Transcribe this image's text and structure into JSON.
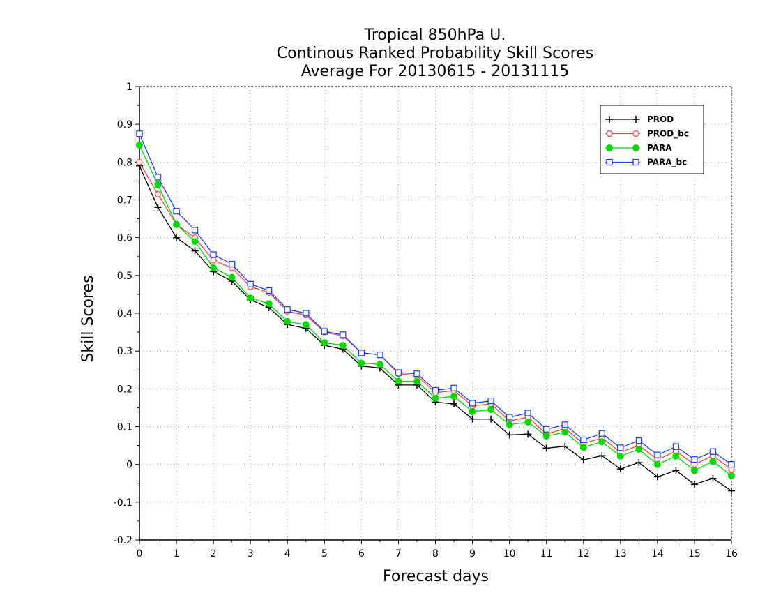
{
  "chart_data": {
    "type": "line",
    "title": [
      "Tropical 850hPa U.",
      "Continous Ranked Probability Skill Scores",
      "Average For 20130615 - 20131115"
    ],
    "xlabel": "Forecast days",
    "ylabel": "Skill Scores",
    "xlim": [
      0,
      16
    ],
    "ylim": [
      -0.2,
      1
    ],
    "xticks": [
      0,
      1,
      2,
      3,
      4,
      5,
      6,
      7,
      8,
      9,
      10,
      11,
      12,
      13,
      14,
      15,
      16
    ],
    "xtick_labels": [
      "0",
      "1",
      "2",
      "3",
      "4",
      "5",
      "6",
      "7",
      "8",
      "9",
      "10",
      "11",
      "12",
      "13",
      "14",
      "15",
      "16"
    ],
    "yticks": [
      -0.2,
      -0.1,
      0,
      0.1,
      0.2,
      0.3,
      0.4,
      0.5,
      0.6,
      0.7,
      0.8,
      0.9,
      1
    ],
    "ytick_labels": [
      "-0.2",
      "-0.1",
      "0",
      "0.1",
      "0.2",
      "0.3",
      "0.4",
      "0.5",
      "0.6",
      "0.7",
      "0.8",
      "0.9",
      "1"
    ],
    "grid": true,
    "legend_position": "top-right",
    "x": [
      0,
      0.5,
      1,
      1.5,
      2,
      2.5,
      3,
      3.5,
      4,
      4.5,
      5,
      5.5,
      6,
      6.5,
      7,
      7.5,
      8,
      8.5,
      9,
      9.5,
      10,
      10.5,
      11,
      11.5,
      12,
      12.5,
      13,
      13.5,
      14,
      14.5,
      15,
      15.5,
      16
    ],
    "series": [
      {
        "name": "PROD",
        "color": "#000000",
        "marker": "plus",
        "values": [
          0.79,
          0.68,
          0.6,
          0.565,
          0.51,
          0.485,
          0.435,
          0.415,
          0.37,
          0.36,
          0.315,
          0.305,
          0.26,
          0.255,
          0.21,
          0.21,
          0.165,
          0.16,
          0.12,
          0.12,
          0.078,
          0.08,
          0.043,
          0.048,
          0.012,
          0.023,
          -0.012,
          0.005,
          -0.033,
          -0.016,
          -0.053,
          -0.037,
          -0.07
        ]
      },
      {
        "name": "PROD_bc",
        "color": "#ff4040",
        "marker": "open-circle",
        "values": [
          0.8,
          0.715,
          0.635,
          0.6,
          0.54,
          0.52,
          0.47,
          0.455,
          0.405,
          0.395,
          0.35,
          0.34,
          0.295,
          0.29,
          0.24,
          0.235,
          0.19,
          0.195,
          0.155,
          0.16,
          0.115,
          0.125,
          0.08,
          0.095,
          0.055,
          0.07,
          0.032,
          0.05,
          0.013,
          0.035,
          0.0,
          0.023,
          -0.013
        ]
      },
      {
        "name": "PARA",
        "color": "#00d800",
        "marker": "filled-circle",
        "values": [
          0.845,
          0.74,
          0.635,
          0.59,
          0.52,
          0.495,
          0.44,
          0.425,
          0.378,
          0.37,
          0.322,
          0.315,
          0.268,
          0.265,
          0.22,
          0.22,
          0.175,
          0.18,
          0.14,
          0.145,
          0.105,
          0.112,
          0.075,
          0.085,
          0.045,
          0.06,
          0.022,
          0.04,
          0.0,
          0.022,
          -0.016,
          0.008,
          -0.03
        ]
      },
      {
        "name": "PARA_bc",
        "color": "#2040ff",
        "marker": "open-square",
        "values": [
          0.875,
          0.76,
          0.67,
          0.62,
          0.555,
          0.53,
          0.477,
          0.46,
          0.41,
          0.4,
          0.352,
          0.343,
          0.295,
          0.29,
          0.243,
          0.24,
          0.196,
          0.202,
          0.162,
          0.168,
          0.125,
          0.136,
          0.093,
          0.105,
          0.065,
          0.082,
          0.044,
          0.063,
          0.025,
          0.047,
          0.013,
          0.034,
          0.0
        ]
      }
    ]
  }
}
